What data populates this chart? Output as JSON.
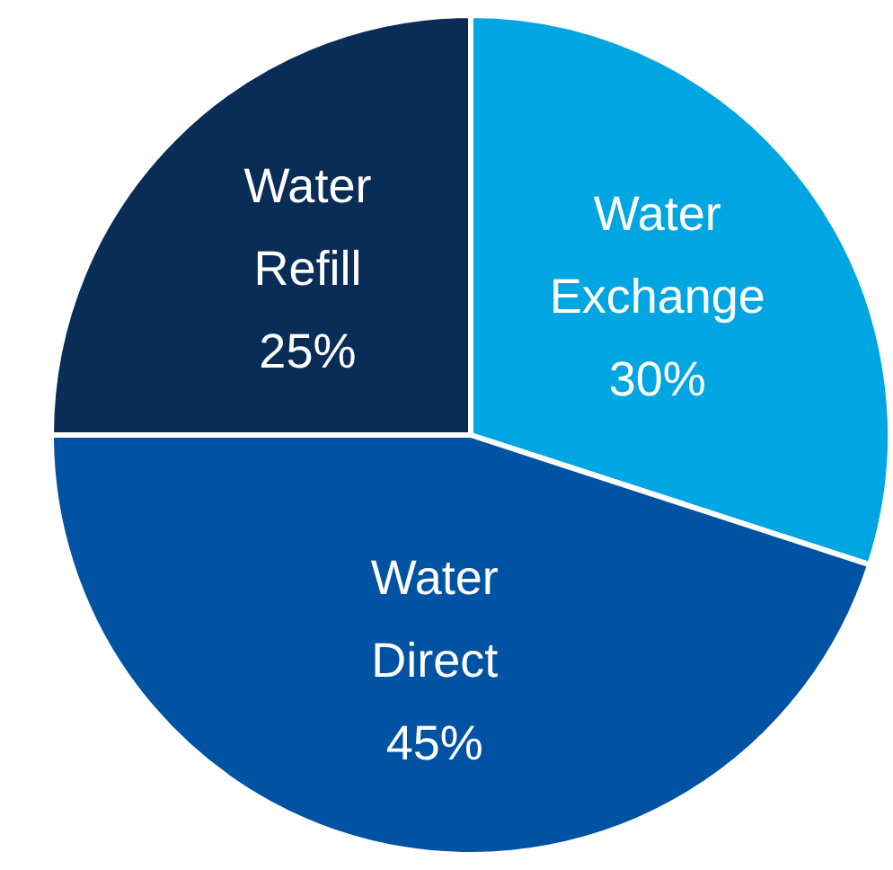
{
  "chart_data": {
    "type": "pie",
    "categories": [
      "Water Exchange",
      "Water Direct",
      "Water Refill"
    ],
    "values": [
      30,
      45,
      25
    ],
    "colors": [
      "#00a6e1",
      "#0052a3",
      "#0a2d57"
    ],
    "value_labels": [
      "30%",
      "45%",
      "25%"
    ],
    "legend": false
  }
}
